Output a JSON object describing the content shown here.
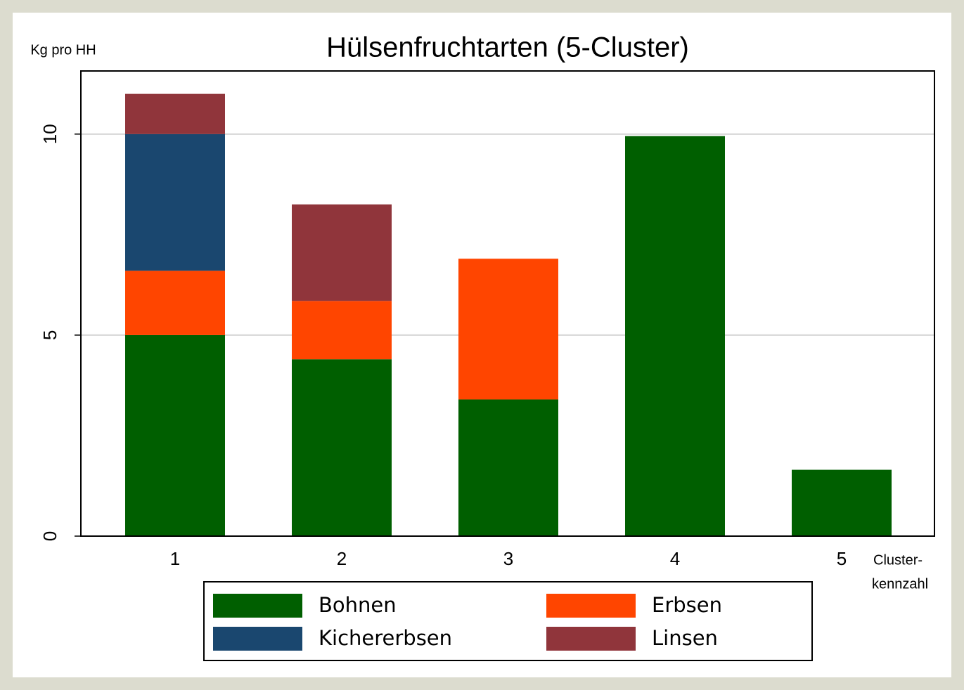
{
  "chart_data": {
    "type": "stacked_bar",
    "title": "Hülsenfruchtarten (5-Cluster)",
    "ylabel": "Kg pro HH",
    "xlabel": [
      "Cluster-",
      "kennzahl"
    ],
    "categories": [
      "1",
      "2",
      "3",
      "4",
      "5"
    ],
    "series": [
      {
        "name": "Bohnen",
        "color": "#005f00",
        "values": [
          5.0,
          4.4,
          3.4,
          9.95,
          1.65
        ]
      },
      {
        "name": "Erbsen",
        "color": "#ff4500",
        "values": [
          1.6,
          1.45,
          3.5,
          0,
          0
        ]
      },
      {
        "name": "Kichererbsen",
        "color": "#1a476f",
        "values": [
          3.4,
          0,
          0,
          0,
          0
        ]
      },
      {
        "name": "Linsen",
        "color": "#90353b",
        "values": [
          1.0,
          2.4,
          0,
          0,
          0
        ]
      }
    ],
    "ylim": [
      0,
      11.57
    ],
    "yticks": [
      0,
      5,
      10
    ],
    "grid": true
  }
}
